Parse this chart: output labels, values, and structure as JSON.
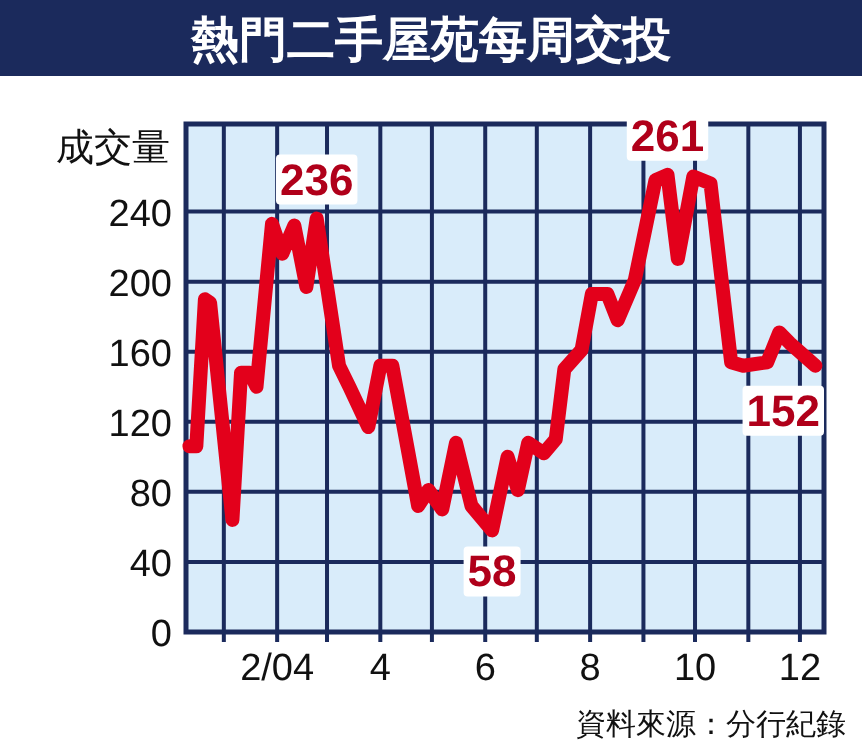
{
  "chart_data": {
    "type": "line",
    "title": "熱門二手屋苑每周交投",
    "ylabel": "成交量",
    "x": [
      "2003-12-12",
      "2003-12-16",
      "2003-12-21",
      "2003-12-24",
      "2004-01-06",
      "2004-01-11",
      "2004-01-16",
      "2004-01-20",
      "2004-01-29",
      "2004-02-04",
      "2004-02-11",
      "2004-02-18",
      "2004-02-24",
      "2004-03-08",
      "2004-03-14",
      "2004-03-25",
      "2004-04-01",
      "2004-04-08",
      "2004-04-23",
      "2004-04-29",
      "2004-05-07",
      "2004-05-15",
      "2004-05-24",
      "2004-06-05",
      "2004-06-14",
      "2004-06-20",
      "2004-06-26",
      "2004-07-05",
      "2004-07-12",
      "2004-07-17",
      "2004-07-27",
      "2004-08-02",
      "2004-08-11",
      "2004-08-17",
      "2004-08-27",
      "2004-09-08",
      "2004-09-15",
      "2004-09-21",
      "2004-09-30",
      "2004-10-10",
      "2004-10-22",
      "2004-10-29",
      "2004-11-12",
      "2004-11-19",
      "2004-11-25",
      "2004-12-10"
    ],
    "series": [
      {
        "color": "#e3001b",
        "values": [
          106,
          106,
          190,
          188,
          64,
          148,
          148,
          140,
          233,
          216,
          232,
          197,
          236,
          152,
          140,
          117,
          152,
          152,
          72,
          81,
          70,
          108,
          72,
          58,
          100,
          81,
          108,
          102,
          110,
          150,
          161,
          193,
          193,
          178,
          201,
          258,
          261,
          213,
          260,
          256,
          154,
          152,
          154,
          171,
          165,
          152
        ]
      }
    ],
    "xlim": [
      "2003-12-10",
      "2004-12-15"
    ],
    "xticks": [
      {
        "value": "2004-01",
        "label": null
      },
      {
        "value": "2004-02",
        "label": "2/04"
      },
      {
        "value": "2004-03",
        "label": null
      },
      {
        "value": "2004-04",
        "label": "4"
      },
      {
        "value": "2004-05",
        "label": null
      },
      {
        "value": "2004-06",
        "label": "6"
      },
      {
        "value": "2004-07",
        "label": null
      },
      {
        "value": "2004-08",
        "label": "8"
      },
      {
        "value": "2004-09",
        "label": null
      },
      {
        "value": "2004-10",
        "label": "10"
      },
      {
        "value": "2004-11",
        "label": null
      },
      {
        "value": "2004-12",
        "label": "12"
      }
    ],
    "ylim": [
      0,
      290
    ],
    "yticks": [
      0,
      40,
      80,
      120,
      160,
      200,
      240
    ],
    "grid": true,
    "marker": "none",
    "line_style": "solid",
    "annotations": [
      {
        "text": "236",
        "x": "2004-02-24",
        "y": 236
      },
      {
        "text": "261",
        "x": "2004-09-15",
        "y": 261
      },
      {
        "text": "58",
        "x": "2004-06-05",
        "y": 58
      },
      {
        "text": "152",
        "x": "2004-12-10",
        "y": 152
      },
      "資料來源：分行紀錄"
    ]
  }
}
